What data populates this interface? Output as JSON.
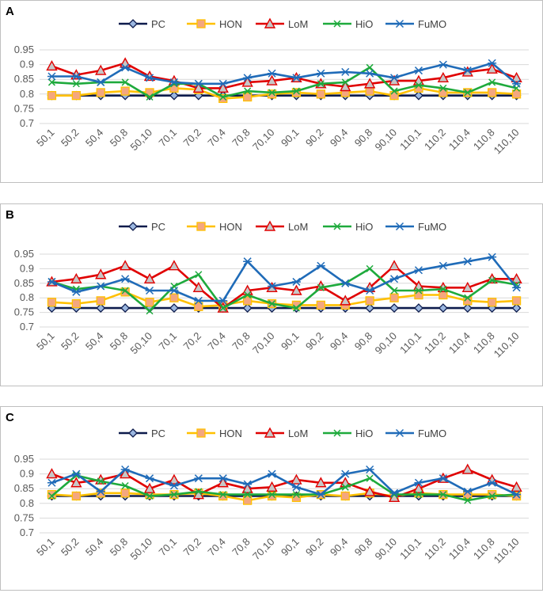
{
  "chart_data": [
    {
      "type": "line",
      "panel_label": "A",
      "categories": [
        "50,1",
        "50,2",
        "50,4",
        "50,8",
        "50,10",
        "70,1",
        "70,2",
        "70,4",
        "70,8",
        "70,10",
        "90,1",
        "90,2",
        "90,4",
        "90,8",
        "90,10",
        "110,1",
        "110,2",
        "110,4",
        "110,8",
        "110,10"
      ],
      "ylim": [
        0.7,
        0.95
      ],
      "yticks": [
        "0.7",
        "0.75",
        "0.8",
        "0.85",
        "0.9",
        "0.95"
      ],
      "ytick_values": [
        0.7,
        0.75,
        0.8,
        0.85,
        0.9,
        0.95
      ],
      "legend_position": "top",
      "series": [
        {
          "name": "PC",
          "color": "#0d1b4c",
          "marker": "diamond",
          "values": [
            0.795,
            0.795,
            0.795,
            0.795,
            0.795,
            0.795,
            0.795,
            0.795,
            0.795,
            0.795,
            0.795,
            0.795,
            0.795,
            0.795,
            0.795,
            0.795,
            0.795,
            0.795,
            0.795,
            0.795
          ]
        },
        {
          "name": "HON",
          "color": "#ffc000",
          "marker": "square",
          "values": [
            0.795,
            0.795,
            0.805,
            0.81,
            0.805,
            0.82,
            0.815,
            0.785,
            0.79,
            0.8,
            0.805,
            0.8,
            0.805,
            0.81,
            0.795,
            0.82,
            0.805,
            0.805,
            0.805,
            0.8
          ]
        },
        {
          "name": "LoM",
          "color": "#e00000",
          "marker": "triangle",
          "values": [
            0.895,
            0.865,
            0.88,
            0.905,
            0.86,
            0.845,
            0.82,
            0.82,
            0.84,
            0.845,
            0.855,
            0.835,
            0.825,
            0.835,
            0.845,
            0.845,
            0.855,
            0.875,
            0.885,
            0.855
          ]
        },
        {
          "name": "HiO",
          "color": "#1eaa3c",
          "marker": "x",
          "values": [
            0.84,
            0.835,
            0.84,
            0.84,
            0.79,
            0.835,
            0.835,
            0.79,
            0.81,
            0.805,
            0.81,
            0.835,
            0.84,
            0.89,
            0.81,
            0.83,
            0.82,
            0.805,
            0.84,
            0.82
          ]
        },
        {
          "name": "FuMO",
          "color": "#1f6bb8",
          "marker": "star",
          "values": [
            0.86,
            0.86,
            0.84,
            0.89,
            0.855,
            0.84,
            0.835,
            0.835,
            0.855,
            0.87,
            0.855,
            0.87,
            0.875,
            0.87,
            0.855,
            0.88,
            0.9,
            0.88,
            0.905,
            0.835
          ]
        }
      ]
    },
    {
      "type": "line",
      "panel_label": "B",
      "categories": [
        "50,1",
        "50,2",
        "50,4",
        "50,8",
        "50,10",
        "70,1",
        "70,2",
        "70,4",
        "70,8",
        "70,10",
        "90,1",
        "90,2",
        "90,4",
        "90,8",
        "90,10",
        "110,1",
        "110,2",
        "110,4",
        "110,8",
        "110,10"
      ],
      "ylim": [
        0.7,
        0.95
      ],
      "yticks": [
        "0.7",
        "0.75",
        "0.8",
        "0.85",
        "0.9",
        "0.95"
      ],
      "ytick_values": [
        0.7,
        0.75,
        0.8,
        0.85,
        0.9,
        0.95
      ],
      "legend_position": "top",
      "series": [
        {
          "name": "PC",
          "color": "#0d1b4c",
          "marker": "diamond",
          "values": [
            0.765,
            0.765,
            0.765,
            0.765,
            0.765,
            0.765,
            0.765,
            0.765,
            0.765,
            0.765,
            0.765,
            0.765,
            0.765,
            0.765,
            0.765,
            0.765,
            0.765,
            0.765,
            0.765,
            0.765
          ]
        },
        {
          "name": "HON",
          "color": "#ffc000",
          "marker": "square",
          "values": [
            0.785,
            0.78,
            0.79,
            0.82,
            0.785,
            0.8,
            0.77,
            0.775,
            0.79,
            0.78,
            0.775,
            0.775,
            0.775,
            0.79,
            0.8,
            0.81,
            0.81,
            0.79,
            0.785,
            0.79
          ]
        },
        {
          "name": "LoM",
          "color": "#e00000",
          "marker": "triangle",
          "values": [
            0.855,
            0.865,
            0.88,
            0.91,
            0.865,
            0.91,
            0.835,
            0.765,
            0.825,
            0.835,
            0.825,
            0.84,
            0.79,
            0.835,
            0.91,
            0.84,
            0.835,
            0.835,
            0.865,
            0.865
          ]
        },
        {
          "name": "HiO",
          "color": "#1eaa3c",
          "marker": "x",
          "values": [
            0.855,
            0.83,
            0.84,
            0.825,
            0.755,
            0.84,
            0.88,
            0.765,
            0.81,
            0.78,
            0.765,
            0.835,
            0.85,
            0.9,
            0.825,
            0.825,
            0.83,
            0.8,
            0.86,
            0.845
          ]
        },
        {
          "name": "FuMO",
          "color": "#1f6bb8",
          "marker": "star",
          "values": [
            0.855,
            0.82,
            0.84,
            0.865,
            0.825,
            0.825,
            0.79,
            0.79,
            0.925,
            0.84,
            0.855,
            0.91,
            0.85,
            0.825,
            0.865,
            0.895,
            0.91,
            0.925,
            0.94,
            0.835
          ]
        }
      ]
    },
    {
      "type": "line",
      "panel_label": "C",
      "categories": [
        "50,1",
        "50,2",
        "50,4",
        "50,8",
        "50,10",
        "70,1",
        "70,2",
        "70,4",
        "70,8",
        "70,10",
        "90,1",
        "90,2",
        "90,4",
        "90,8",
        "90,10",
        "110,1",
        "110,2",
        "110,4",
        "110,8",
        "110,10"
      ],
      "ylim": [
        0.7,
        0.95
      ],
      "yticks": [
        "0.7",
        "0.75",
        "0.8",
        "0.85",
        "0.9",
        "0.95"
      ],
      "ytick_values": [
        0.7,
        0.75,
        0.8,
        0.85,
        0.9,
        0.95
      ],
      "legend_position": "top",
      "series": [
        {
          "name": "PC",
          "color": "#0d1b4c",
          "marker": "diamond",
          "values": [
            0.825,
            0.825,
            0.825,
            0.825,
            0.825,
            0.825,
            0.825,
            0.825,
            0.825,
            0.825,
            0.825,
            0.825,
            0.825,
            0.825,
            0.825,
            0.825,
            0.825,
            0.825,
            0.825,
            0.825
          ]
        },
        {
          "name": "HON",
          "color": "#ffc000",
          "marker": "square",
          "values": [
            0.83,
            0.825,
            0.835,
            0.835,
            0.83,
            0.83,
            0.835,
            0.825,
            0.81,
            0.825,
            0.82,
            0.83,
            0.825,
            0.835,
            0.825,
            0.835,
            0.83,
            0.83,
            0.83,
            0.825
          ]
        },
        {
          "name": "LoM",
          "color": "#e00000",
          "marker": "triangle",
          "values": [
            0.9,
            0.87,
            0.88,
            0.9,
            0.85,
            0.88,
            0.83,
            0.87,
            0.85,
            0.855,
            0.88,
            0.87,
            0.87,
            0.84,
            0.82,
            0.85,
            0.885,
            0.915,
            0.88,
            0.855
          ]
        },
        {
          "name": "HiO",
          "color": "#1eaa3c",
          "marker": "x",
          "values": [
            0.825,
            0.895,
            0.875,
            0.86,
            0.825,
            0.83,
            0.84,
            0.83,
            0.83,
            0.83,
            0.83,
            0.83,
            0.855,
            0.885,
            0.83,
            0.83,
            0.83,
            0.81,
            0.825,
            0.83
          ]
        },
        {
          "name": "FuMO",
          "color": "#1f6bb8",
          "marker": "star",
          "values": [
            0.87,
            0.9,
            0.84,
            0.915,
            0.885,
            0.86,
            0.885,
            0.885,
            0.865,
            0.9,
            0.855,
            0.83,
            0.9,
            0.915,
            0.835,
            0.87,
            0.885,
            0.84,
            0.87,
            0.83
          ]
        }
      ]
    }
  ]
}
